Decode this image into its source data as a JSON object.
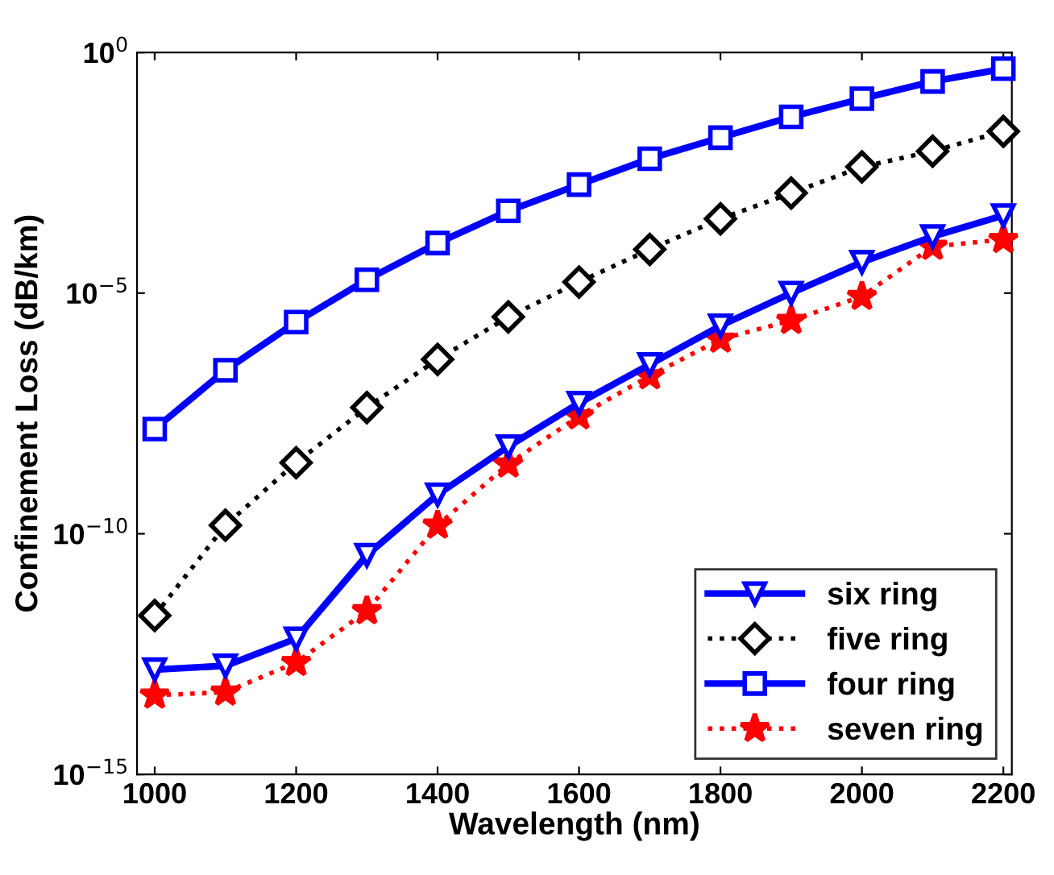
{
  "chart_data": {
    "type": "line",
    "xlabel": "Wavelength (nm)",
    "ylabel": "Confinement Loss (dB/km)",
    "log": "y",
    "x": [
      1000,
      1100,
      1200,
      1300,
      1400,
      1500,
      1600,
      1700,
      1800,
      1900,
      2000,
      2100,
      2200
    ],
    "xlim": [
      975,
      2212
    ],
    "xticks": [
      1000,
      1200,
      1400,
      1600,
      1800,
      2000,
      2200
    ],
    "ylim": [
      1e-15,
      1
    ],
    "yticks": [
      {
        "value": 1e-15,
        "label": "10$^{−15}$"
      },
      {
        "value": 1e-10,
        "label": "10$^{−10}$"
      },
      {
        "value": 1e-05,
        "label": "10$^{−5}$"
      },
      {
        "value": 1,
        "label": "10$^{0}$"
      }
    ],
    "grid": false,
    "legend": "bottom right",
    "series": [
      {
        "name": "six ring",
        "color": "#0000ff",
        "marker": "triangle",
        "line_style": "solid",
        "values": [
          1.5e-13,
          1.8e-13,
          6.6e-13,
          3.6e-11,
          6.5e-10,
          6.5e-09,
          5.2e-08,
          3.3e-07,
          2.1e-06,
          1e-05,
          4.4e-05,
          0.00015,
          0.00041
        ]
      },
      {
        "name": "five ring",
        "color": "#000000",
        "marker": "diamond",
        "line_style": "dotted",
        "values": [
          2e-12,
          1.5e-10,
          3e-09,
          4.2e-08,
          4.2e-07,
          3.2e-06,
          1.7e-05,
          8.1e-05,
          0.00035,
          0.0012,
          0.0042,
          0.0089,
          0.023
        ]
      },
      {
        "name": "four ring",
        "color": "#0000ff",
        "marker": "square",
        "line_style": "solid",
        "values": [
          1.5e-08,
          2.5e-07,
          2.5e-06,
          1.9e-05,
          0.00011,
          0.00051,
          0.0018,
          0.0062,
          0.017,
          0.046,
          0.11,
          0.25,
          0.46
        ]
      },
      {
        "name": "seven ring",
        "color": "#ff0000",
        "marker": "star",
        "line_style": "dotted",
        "values": [
          4.4e-14,
          5.1e-14,
          2.1e-13,
          2.5e-12,
          1.5e-10,
          2.8e-09,
          2.8e-08,
          1.9e-07,
          1.1e-06,
          2.7e-06,
          8.5e-06,
          9.3e-05,
          0.00013
        ]
      }
    ]
  }
}
